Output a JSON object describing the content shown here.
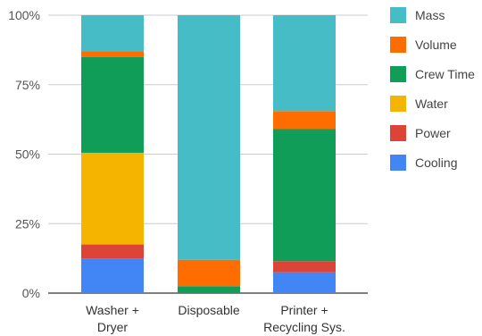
{
  "chart_data": {
    "type": "bar",
    "stacked": true,
    "percent_stacked": true,
    "title": "",
    "xlabel": "",
    "ylabel": "",
    "categories": [
      [
        "Washer +",
        "Dryer"
      ],
      [
        "Disposable"
      ],
      [
        "Printer +",
        "Recycling Sys."
      ]
    ],
    "y_ticks": [
      "0%",
      "25%",
      "50%",
      "75%",
      "100%"
    ],
    "ylim": [
      0,
      100
    ],
    "grid": true,
    "legend_position": "right",
    "series": [
      {
        "name": "Cooling",
        "color": "#4285f4",
        "values": [
          12.5,
          0.0,
          7.5
        ]
      },
      {
        "name": "Power",
        "color": "#db4437",
        "values": [
          5.0,
          0.0,
          4.0
        ]
      },
      {
        "name": "Water",
        "color": "#f4b400",
        "values": [
          33.0,
          0.0,
          0.0
        ]
      },
      {
        "name": "Crew Time",
        "color": "#0f9d58",
        "values": [
          34.5,
          2.5,
          47.5
        ]
      },
      {
        "name": "Volume",
        "color": "#ff6d00",
        "values": [
          2.0,
          9.5,
          6.5
        ]
      },
      {
        "name": "Mass",
        "color": "#46bdc6",
        "values": [
          13.0,
          88.0,
          34.5
        ]
      }
    ]
  }
}
